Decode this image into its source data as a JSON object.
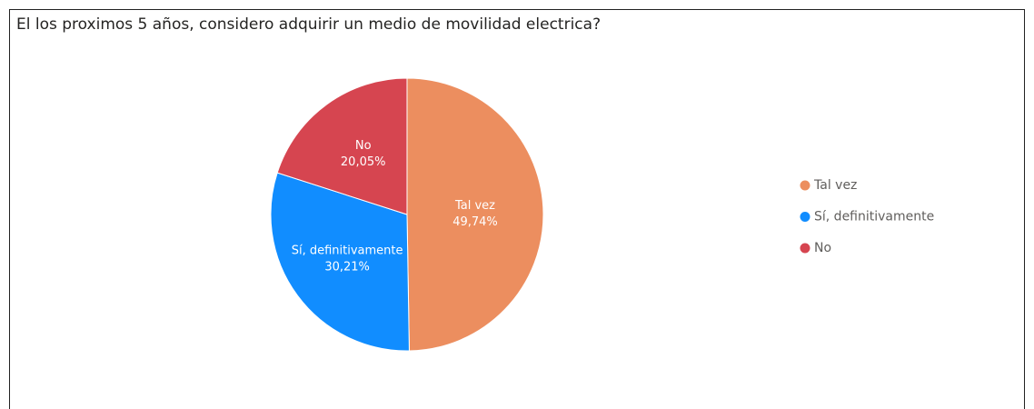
{
  "chart_data": {
    "type": "pie",
    "title": "El los proximos 5 años, considero adquirir un medio de movilidad electrica?",
    "categories": [
      "Tal vez",
      "Sí, definitivamente",
      "No"
    ],
    "values": [
      49.74,
      30.21,
      20.05
    ],
    "value_labels": [
      "49,74%",
      "30,21%",
      "20,05%"
    ],
    "colors": [
      "#EC8E5F",
      "#118DFF",
      "#D64550"
    ],
    "legend": "right"
  }
}
